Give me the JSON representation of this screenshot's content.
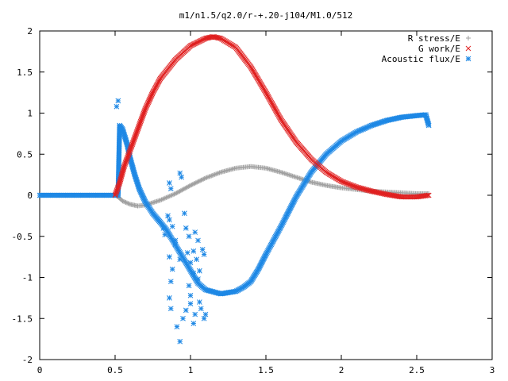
{
  "chart_data": {
    "type": "scatter",
    "title": "m1/n1.5/q2.0/r-+.20-j104/M1.0/512",
    "xlabel": "",
    "ylabel": "",
    "xlim": [
      0,
      3
    ],
    "ylim": [
      -2,
      2
    ],
    "xticks": [
      "0",
      "0.5",
      "1",
      "1.5",
      "2",
      "2.5",
      "3"
    ],
    "yticks": [
      "-2",
      "-1.5",
      "-1",
      "-0.5",
      "0",
      "0.5",
      "1",
      "1.5",
      "2"
    ],
    "grid": false,
    "legend_position": "top-right",
    "series": [
      {
        "name": "R stress/E",
        "marker": "+",
        "color": "#a0a0a0",
        "points": [
          [
            0.0,
            0.0
          ],
          [
            0.5,
            0.0
          ],
          [
            0.52,
            -0.02
          ],
          [
            0.55,
            -0.07
          ],
          [
            0.6,
            -0.11
          ],
          [
            0.65,
            -0.13
          ],
          [
            0.7,
            -0.12
          ],
          [
            0.8,
            -0.06
          ],
          [
            0.9,
            0.02
          ],
          [
            1.0,
            0.12
          ],
          [
            1.1,
            0.21
          ],
          [
            1.2,
            0.28
          ],
          [
            1.3,
            0.33
          ],
          [
            1.4,
            0.35
          ],
          [
            1.5,
            0.33
          ],
          [
            1.6,
            0.28
          ],
          [
            1.7,
            0.22
          ],
          [
            1.8,
            0.16
          ],
          [
            1.9,
            0.12
          ],
          [
            2.0,
            0.09
          ],
          [
            2.1,
            0.07
          ],
          [
            2.2,
            0.05
          ],
          [
            2.3,
            0.04
          ],
          [
            2.4,
            0.03
          ],
          [
            2.5,
            0.02
          ],
          [
            2.58,
            0.02
          ]
        ]
      },
      {
        "name": "G work/E",
        "marker": "x",
        "color": "#e02020",
        "points": [
          [
            0.5,
            0.0
          ],
          [
            0.53,
            0.15
          ],
          [
            0.56,
            0.35
          ],
          [
            0.6,
            0.55
          ],
          [
            0.65,
            0.8
          ],
          [
            0.7,
            1.05
          ],
          [
            0.75,
            1.25
          ],
          [
            0.8,
            1.42
          ],
          [
            0.9,
            1.65
          ],
          [
            1.0,
            1.82
          ],
          [
            1.1,
            1.91
          ],
          [
            1.15,
            1.93
          ],
          [
            1.2,
            1.91
          ],
          [
            1.3,
            1.8
          ],
          [
            1.4,
            1.56
          ],
          [
            1.5,
            1.25
          ],
          [
            1.6,
            0.92
          ],
          [
            1.7,
            0.65
          ],
          [
            1.8,
            0.44
          ],
          [
            1.9,
            0.28
          ],
          [
            2.0,
            0.17
          ],
          [
            2.1,
            0.1
          ],
          [
            2.2,
            0.05
          ],
          [
            2.3,
            0.01
          ],
          [
            2.4,
            -0.02
          ],
          [
            2.5,
            -0.02
          ],
          [
            2.58,
            0.0
          ]
        ]
      },
      {
        "name": "Acoustic flux/E",
        "marker": "*",
        "color": "#1e88e5",
        "points": [
          [
            0.0,
            0.0
          ],
          [
            0.5,
            0.0
          ],
          [
            0.52,
            0.0
          ],
          [
            0.53,
            0.85
          ],
          [
            0.55,
            0.8
          ],
          [
            0.58,
            0.62
          ],
          [
            0.6,
            0.45
          ],
          [
            0.63,
            0.25
          ],
          [
            0.66,
            0.08
          ],
          [
            0.7,
            -0.08
          ],
          [
            0.75,
            -0.22
          ],
          [
            0.8,
            -0.33
          ],
          [
            0.84,
            -0.42
          ],
          [
            1.05,
            -1.07
          ],
          [
            1.1,
            -1.15
          ],
          [
            1.2,
            -1.2
          ],
          [
            1.3,
            -1.17
          ],
          [
            1.35,
            -1.12
          ],
          [
            1.4,
            -1.05
          ],
          [
            1.45,
            -0.9
          ],
          [
            1.5,
            -0.72
          ],
          [
            1.6,
            -0.38
          ],
          [
            1.7,
            -0.02
          ],
          [
            1.8,
            0.28
          ],
          [
            1.9,
            0.5
          ],
          [
            2.0,
            0.66
          ],
          [
            2.1,
            0.77
          ],
          [
            2.2,
            0.85
          ],
          [
            2.3,
            0.91
          ],
          [
            2.4,
            0.95
          ],
          [
            2.5,
            0.97
          ],
          [
            2.56,
            0.98
          ],
          [
            2.58,
            0.85
          ]
        ],
        "scatter_points": [
          [
            0.52,
            1.15
          ],
          [
            0.51,
            1.08
          ],
          [
            0.93,
            0.27
          ],
          [
            0.94,
            0.22
          ],
          [
            0.86,
            0.15
          ],
          [
            0.87,
            0.08
          ],
          [
            0.85,
            -0.25
          ],
          [
            0.82,
            -0.4
          ],
          [
            0.83,
            -0.48
          ],
          [
            0.86,
            -0.3
          ],
          [
            0.88,
            -0.38
          ],
          [
            0.9,
            -0.55
          ],
          [
            0.86,
            -0.75
          ],
          [
            0.88,
            -0.9
          ],
          [
            0.87,
            -1.05
          ],
          [
            0.86,
            -1.25
          ],
          [
            0.87,
            -1.38
          ],
          [
            0.9,
            -0.6
          ],
          [
            0.93,
            -0.78
          ],
          [
            0.96,
            -0.22
          ],
          [
            0.97,
            -0.4
          ],
          [
            0.99,
            -0.5
          ],
          [
            0.98,
            -0.7
          ],
          [
            1.0,
            -0.82
          ],
          [
            1.02,
            -0.95
          ],
          [
            0.99,
            -1.1
          ],
          [
            1.0,
            -1.22
          ],
          [
            0.97,
            -1.4
          ],
          [
            0.95,
            -1.5
          ],
          [
            0.91,
            -1.6
          ],
          [
            0.93,
            -1.78
          ],
          [
            1.03,
            -0.45
          ],
          [
            1.05,
            -0.55
          ],
          [
            1.02,
            -0.68
          ],
          [
            1.04,
            -0.78
          ],
          [
            1.06,
            -0.92
          ],
          [
            1.05,
            -1.02
          ],
          [
            1.08,
            -0.66
          ],
          [
            1.09,
            -0.72
          ],
          [
            1.06,
            -1.3
          ],
          [
            1.07,
            -1.38
          ],
          [
            1.03,
            -1.45
          ],
          [
            1.02,
            -1.56
          ],
          [
            1.1,
            -1.45
          ],
          [
            1.09,
            -1.5
          ],
          [
            1.0,
            -1.32
          ]
        ]
      }
    ]
  }
}
